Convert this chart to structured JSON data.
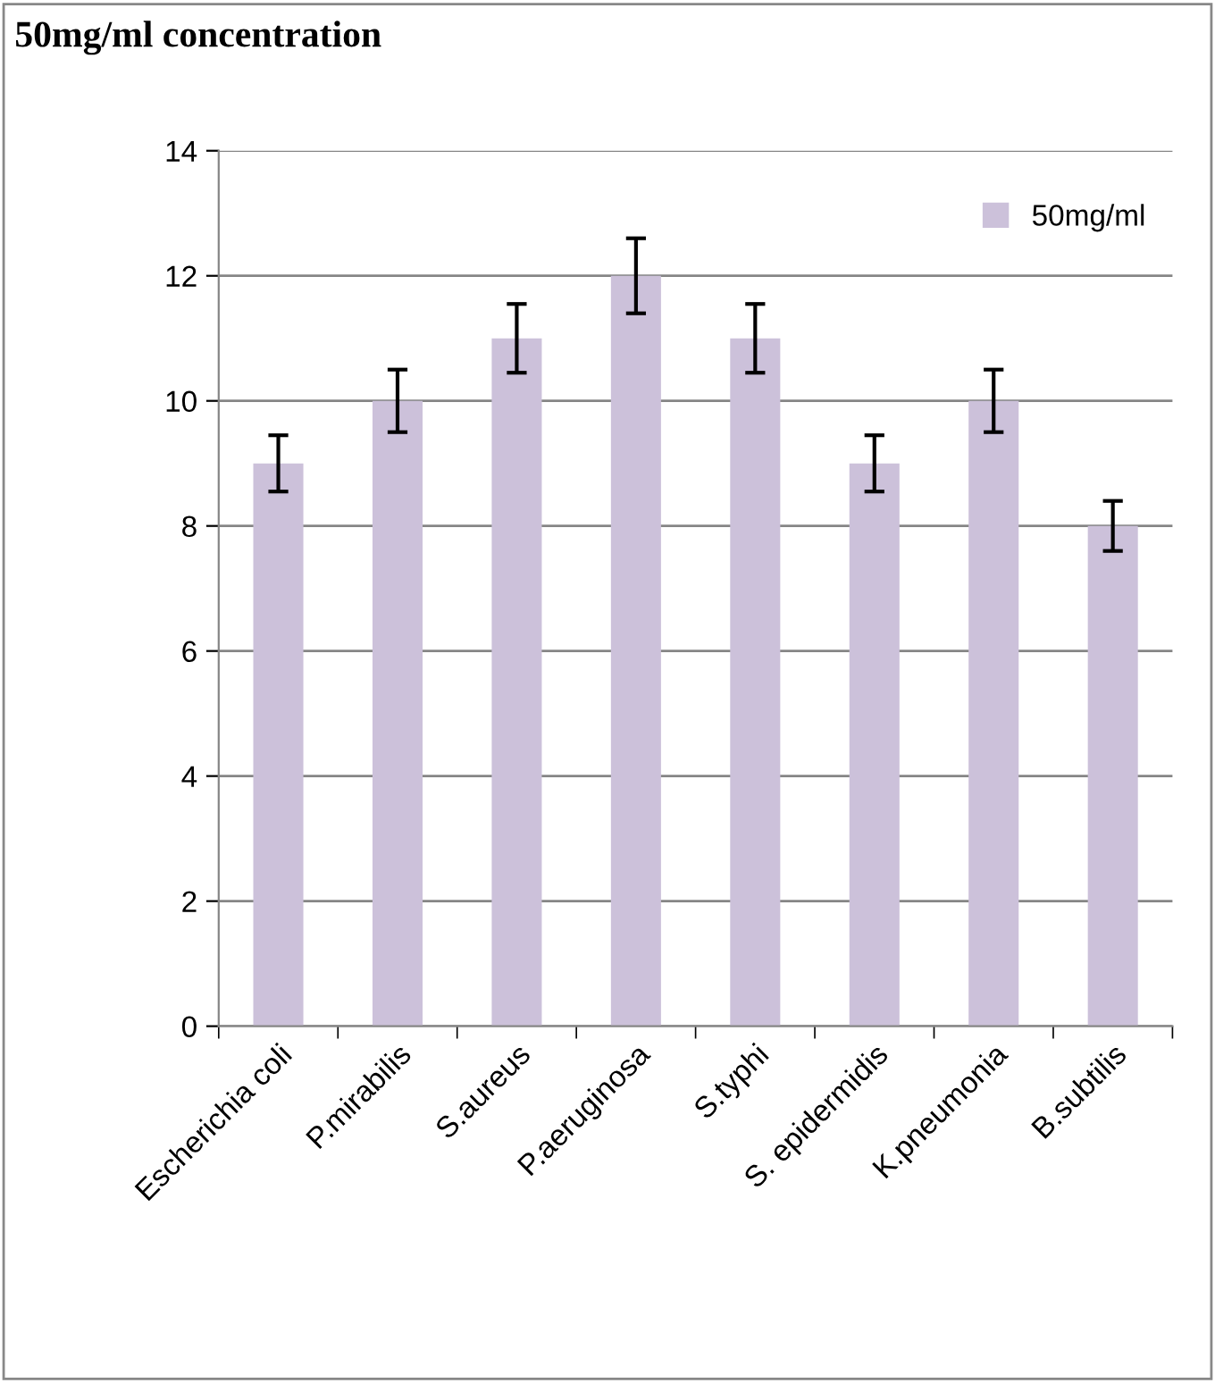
{
  "chart_data": {
    "type": "bar",
    "title": "50mg/ml concentration",
    "categories": [
      "Escherichia coli",
      "P.mirabilis",
      "S.aureus",
      "P.aeruginosa",
      "S.typhi",
      "S. epidermidis",
      "K.pneumonia",
      "B.subtilis"
    ],
    "series": [
      {
        "name": "50mg/ml",
        "color": "#ccc1da",
        "values": [
          9,
          10,
          11,
          12,
          11,
          9,
          10,
          8
        ],
        "errors": [
          0.45,
          0.5,
          0.55,
          0.6,
          0.55,
          0.45,
          0.5,
          0.4
        ]
      }
    ],
    "ylim": [
      0,
      14
    ],
    "yticks": [
      0,
      2,
      4,
      6,
      8,
      10,
      12,
      14
    ],
    "grid": "y",
    "legend": "top right"
  }
}
